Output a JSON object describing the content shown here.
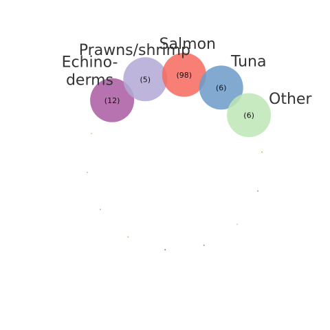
{
  "chart_data": {
    "type": "bubble-ring",
    "bubbles": [
      {
        "name": "Echinoderms",
        "label_lines": [
          "Echino-",
          "derms"
        ],
        "count_label": "(12)",
        "value": 12,
        "color": "#a95aa1"
      },
      {
        "name": "Prawns/shrimp",
        "label_lines": [
          "Prawns/shrimp"
        ],
        "count_label": "(5)",
        "value": 5,
        "color": "#b1a8d5"
      },
      {
        "name": "Salmon",
        "label_lines": [
          "Salmon"
        ],
        "count_label": "(98)",
        "value": 98,
        "color": "#f7685d"
      },
      {
        "name": "Tuna",
        "label_lines": [
          "Tuna"
        ],
        "count_label": "(6)",
        "value": 6,
        "color": "#6c9bc8"
      },
      {
        "name": "Other",
        "label_lines": [
          "Other"
        ],
        "count_label": "(6)",
        "value": 6,
        "color": "#bde6b5"
      }
    ],
    "empty_slots_colors": [
      "#f5a623",
      "#8aa0b8",
      "#e0c8a0",
      "#9b7fb5",
      "#6d7fa0",
      "#e8a878",
      "#a0b8d0",
      "#c8b8e0",
      "#f0c080"
    ]
  }
}
